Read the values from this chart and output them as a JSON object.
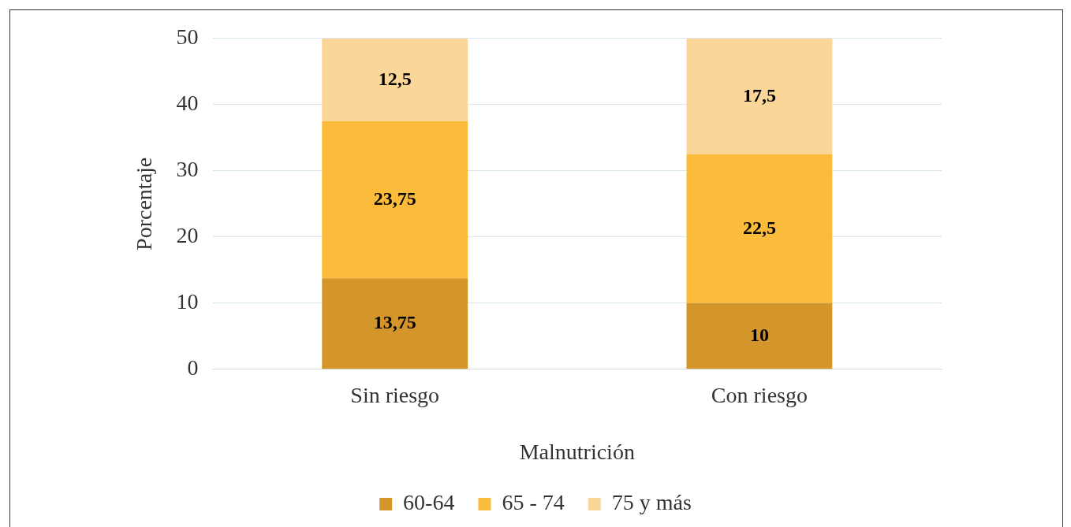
{
  "chart_data": {
    "type": "bar",
    "stacked": true,
    "xlabel": "Malnutrición",
    "ylabel": "Porcentaje",
    "categories": [
      "Sin riesgo",
      "Con riesgo"
    ],
    "series": [
      {
        "name": "60-64",
        "color": "#d4952a",
        "values": [
          13.75,
          10
        ],
        "value_labels": [
          "13,75",
          "10"
        ]
      },
      {
        "name": "65 - 74",
        "color": "#fbbb3b",
        "values": [
          23.75,
          22.5
        ],
        "value_labels": [
          "23,75",
          "22,5"
        ]
      },
      {
        "name": "75 y más",
        "color": "#fbd699",
        "values": [
          12.5,
          17.5
        ],
        "value_labels": [
          "12,5",
          "17,5"
        ]
      }
    ],
    "ylim": [
      0,
      50
    ],
    "yticks": [
      0,
      10,
      20,
      30,
      40,
      50
    ],
    "grid": "y",
    "legend": "bottom"
  }
}
